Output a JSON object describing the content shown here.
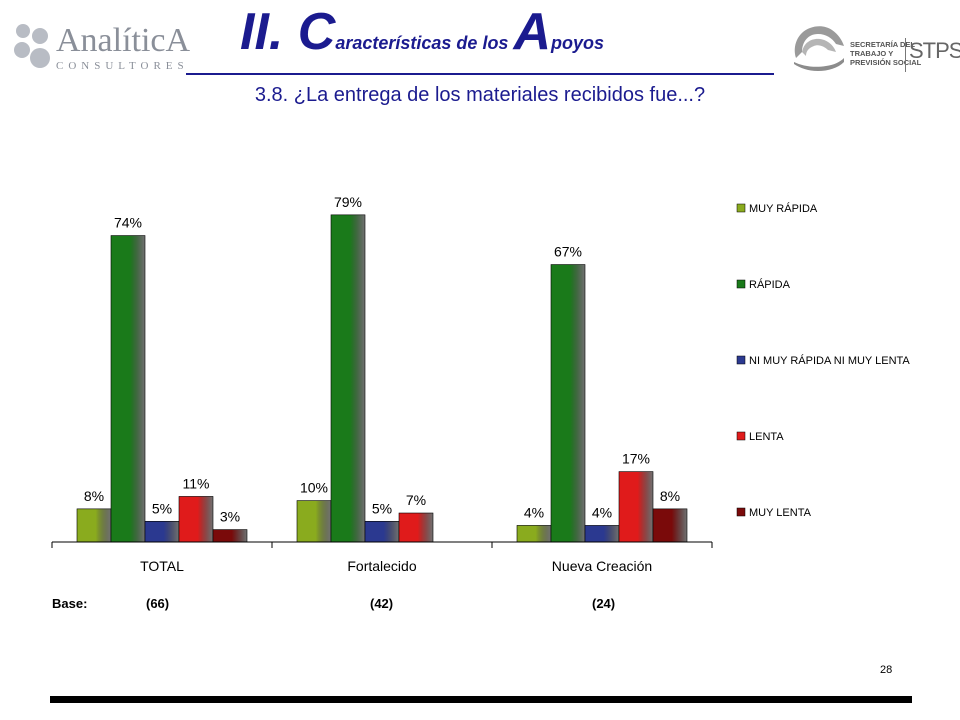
{
  "header": {
    "logo_left": {
      "word": "AnalíticA",
      "sub": "CONSULTORES"
    },
    "title_parts": [
      {
        "text": "II. C",
        "size": "big"
      },
      {
        "text": "aracterísticas de los ",
        "size": "small"
      },
      {
        "text": "A",
        "size": "big"
      },
      {
        "text": "poyos",
        "size": "small"
      }
    ],
    "subtitle": "3.8. ¿La entrega de los materiales recibidos fue...?",
    "logo_right": {
      "lines": [
        "SECRETARÍA DEL",
        "TRABAJO Y",
        "PREVISIÓN SOCIAL"
      ],
      "acronym": "STPS"
    }
  },
  "chart_data": {
    "type": "bar",
    "categories": [
      "TOTAL",
      "Fortalecido",
      "Nueva Creación"
    ],
    "series": [
      {
        "name": "MUY RÁPIDA",
        "color": "#8aab1e",
        "values": [
          8,
          10,
          4
        ],
        "labels": [
          "8%",
          "10%",
          "4%"
        ]
      },
      {
        "name": "RÁPIDA",
        "color": "#1a7a1a",
        "values": [
          74,
          79,
          67
        ],
        "labels": [
          "74%",
          "79%",
          "67%"
        ]
      },
      {
        "name": "NI MUY RÁPIDA NI MUY LENTA",
        "color": "#2b3990",
        "values": [
          5,
          5,
          4
        ],
        "labels": [
          "5%",
          "5%",
          "4%"
        ]
      },
      {
        "name": "LENTA",
        "color": "#e01b1b",
        "values": [
          11,
          7,
          17
        ],
        "labels": [
          "11%",
          "7%",
          "17%"
        ]
      },
      {
        "name": "MUY LENTA",
        "color": "#7a0a0a",
        "values": [
          3,
          0,
          8
        ],
        "labels": [
          "3%",
          "",
          "8%"
        ]
      }
    ],
    "ylim": [
      0,
      85
    ],
    "legend_position": "right",
    "grid": false
  },
  "base": {
    "label": "Base:",
    "values": [
      "(66)",
      "(42)",
      "(24)"
    ]
  },
  "page_number": "28"
}
